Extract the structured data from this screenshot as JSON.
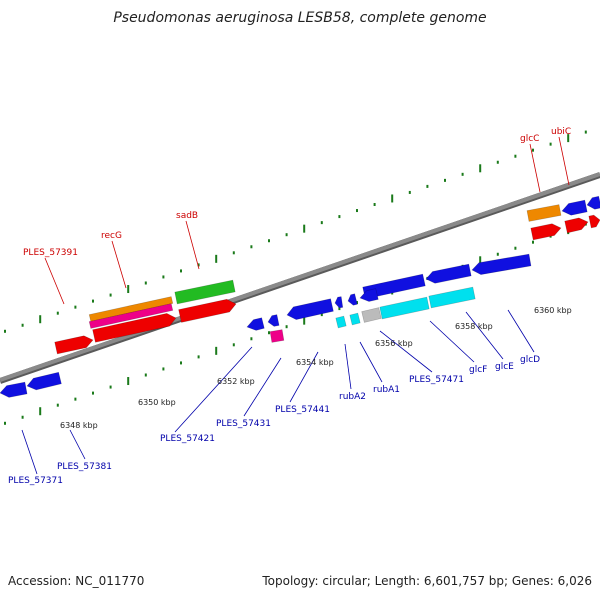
{
  "header": {
    "title": "Pseudomonas aeruginosa LESB58, complete genome"
  },
  "footer": {
    "accession": "Accession: NC_011770",
    "summary": "Topology: circular; Length: 6,601,757 bp; Genes: 6,026"
  },
  "colors": {
    "backbone": "#8a8a8a",
    "scale_tick": "#1a7a1a",
    "upper_label": "#cc0000",
    "lower_label": "#0000aa",
    "blue": "#1010e0",
    "red": "#ee0000",
    "orange": "#ee8800",
    "magenta": "#ee0088",
    "green": "#22bb22",
    "cyan": "#00e0ee",
    "gray": "#bbbbbb"
  },
  "scale_labels": [
    {
      "kbp": 6348,
      "text": "6348 kbp"
    },
    {
      "kbp": 6350,
      "text": "6350 kbp"
    },
    {
      "kbp": 6352,
      "text": "6352 kbp"
    },
    {
      "kbp": 6354,
      "text": "6354 kbp"
    },
    {
      "kbp": 6356,
      "text": "6356 kbp"
    },
    {
      "kbp": 6358,
      "text": "6358 kbp"
    },
    {
      "kbp": 6360,
      "text": "6360 kbp"
    }
  ],
  "upper_labels": [
    {
      "name": "PLES_57391"
    },
    {
      "name": "recG"
    },
    {
      "name": "sadB"
    },
    {
      "name": "glcC"
    },
    {
      "name": "ubiC"
    }
  ],
  "lower_labels": [
    {
      "name": "PLES_57371"
    },
    {
      "name": "PLES_57381"
    },
    {
      "name": "PLES_57421"
    },
    {
      "name": "PLES_57431"
    },
    {
      "name": "PLES_57441"
    },
    {
      "name": "rubA2"
    },
    {
      "name": "rubA1"
    },
    {
      "name": "PLES_57471"
    },
    {
      "name": "glcF"
    },
    {
      "name": "glcE"
    },
    {
      "name": "glcD"
    }
  ]
}
